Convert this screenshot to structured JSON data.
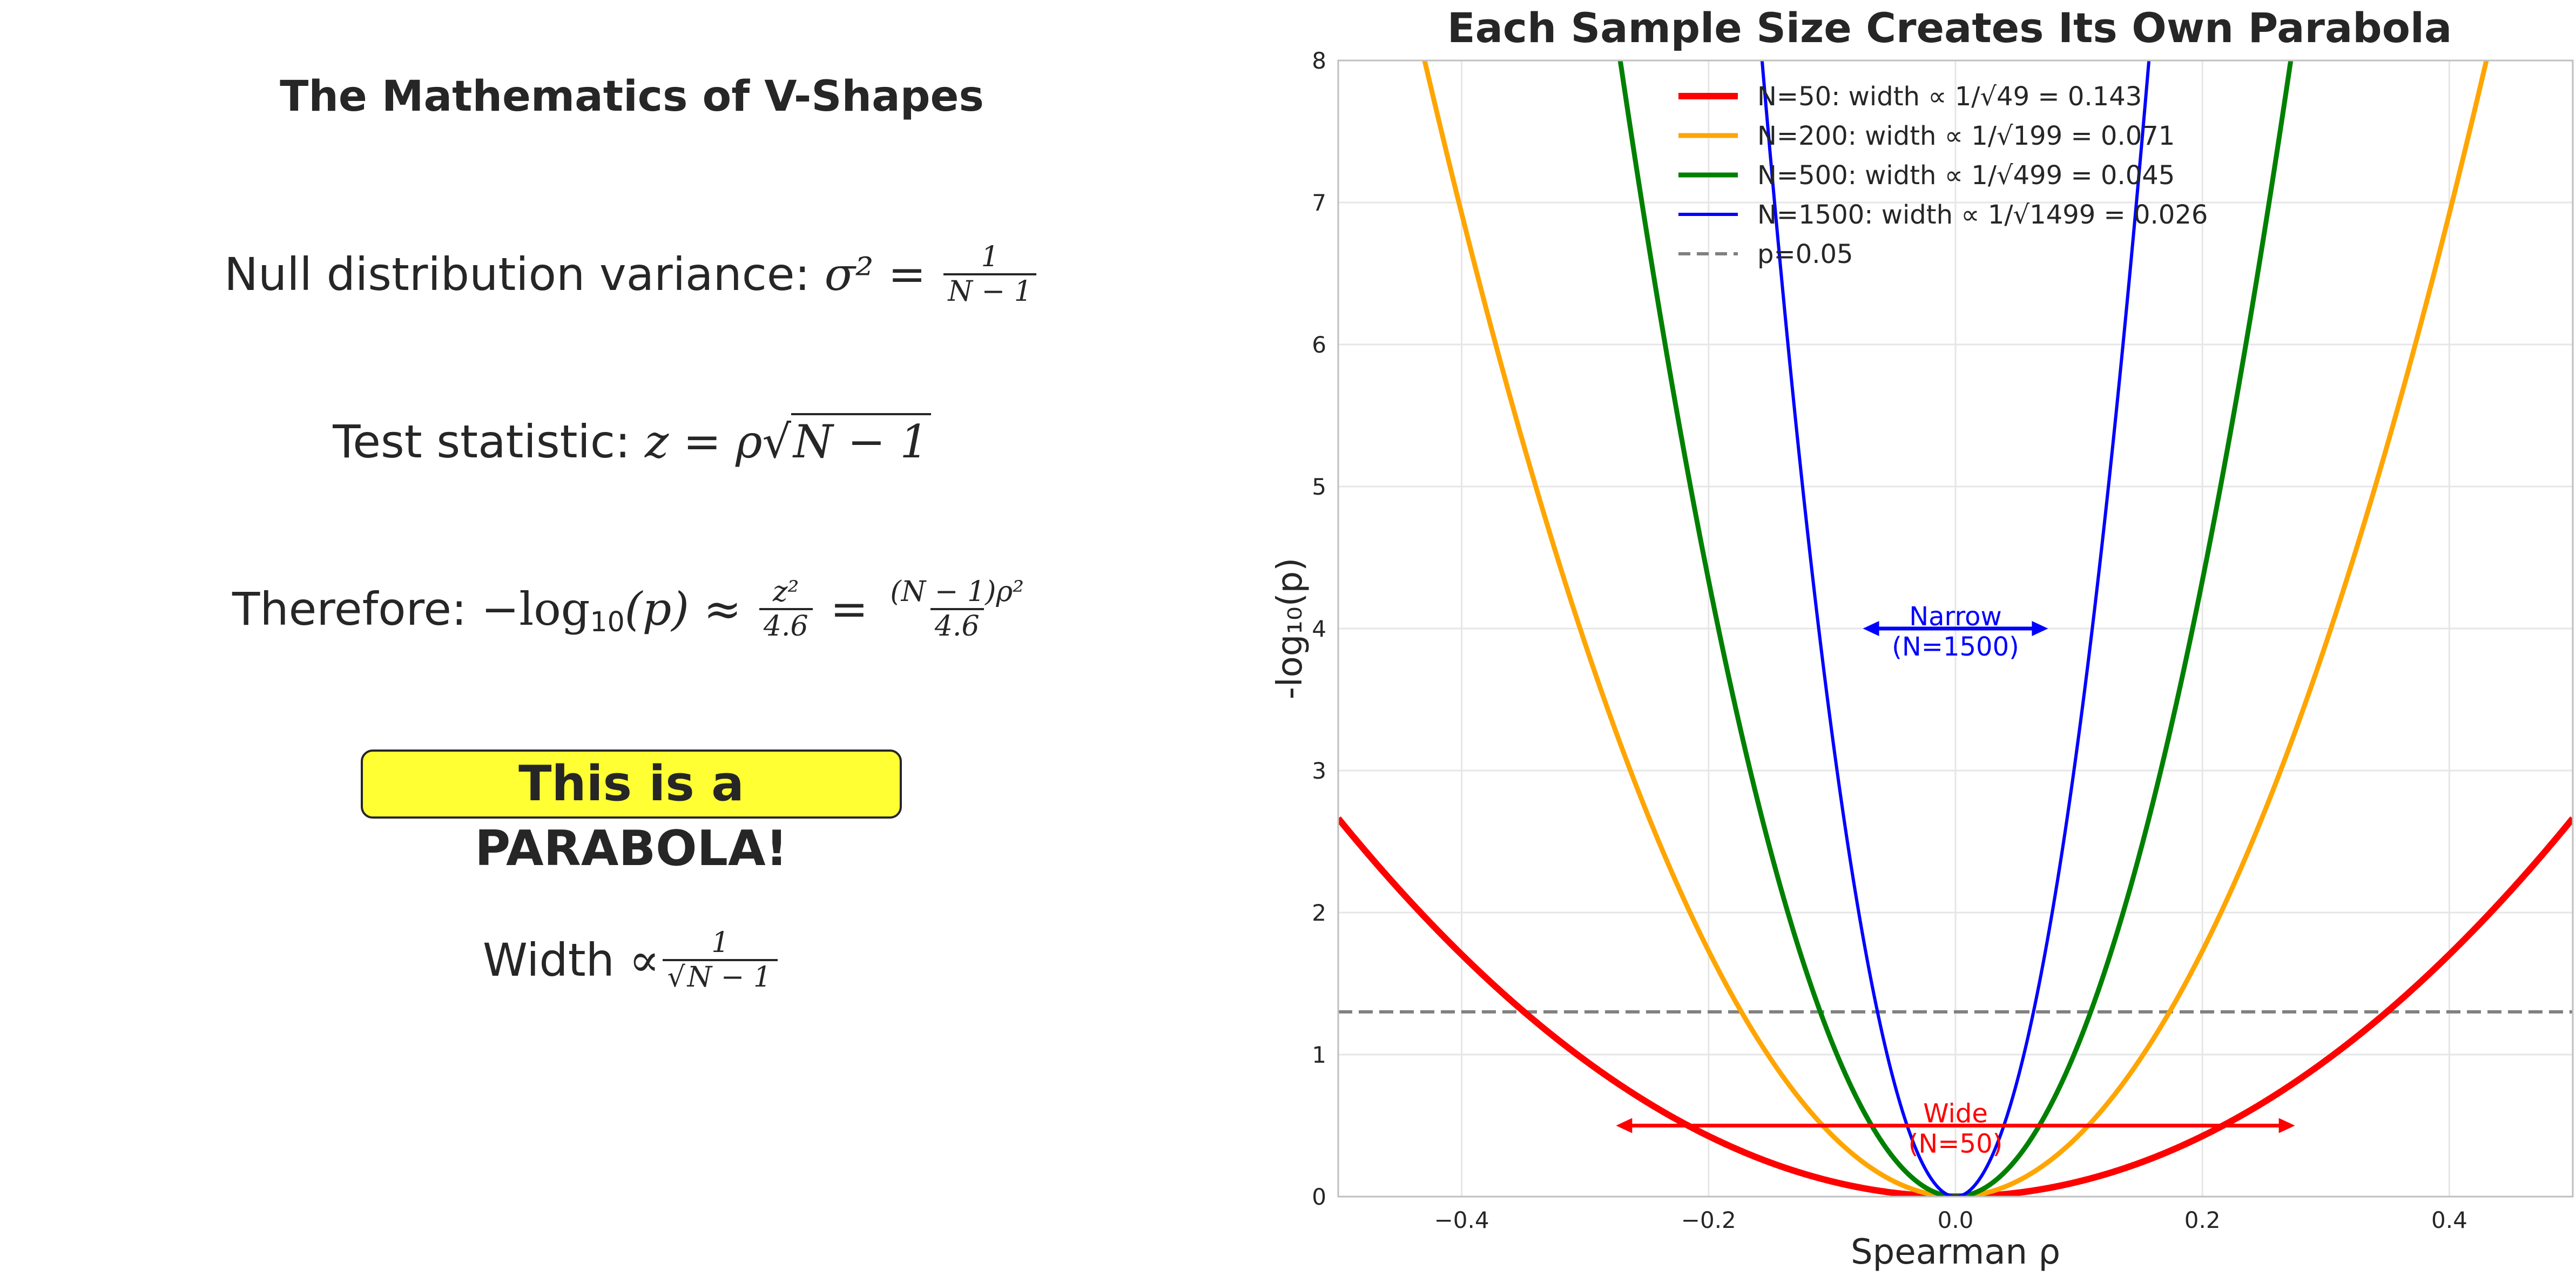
{
  "left_panel": {
    "title": "The Mathematics of V-Shapes",
    "eq1_label": "Null distribution variance: ",
    "eq1_lhs": "σ² = ",
    "eq1_num": "1",
    "eq1_den": "N − 1",
    "eq2_label": "Test statistic: ",
    "eq2_lhs": "z = ρ",
    "eq2_sqrt": "N − 1",
    "eq3_label": "Therefore: ",
    "eq3_lhs": "−log",
    "eq3_sub": "10",
    "eq3_arg": "(p) ≈ ",
    "eq3_num1": "z²",
    "eq3_den1": "4.6",
    "eq3_eq": " = ",
    "eq3_num2": "(N − 1)ρ²",
    "eq3_den2": "4.6",
    "highlight": "This is a PARABOLA!",
    "width_label": "Width ",
    "width_prop": "∝",
    "width_num": "1",
    "width_den": "N − 1"
  },
  "chart_data": {
    "type": "line",
    "title": "Each Sample Size Creates Its Own Parabola",
    "xlabel": "Spearman ρ",
    "ylabel": "-log₁₀(p)",
    "xlim": [
      -0.5,
      0.5
    ],
    "ylim": [
      0,
      8
    ],
    "xticks": [
      -0.4,
      -0.2,
      0.0,
      0.2,
      0.4
    ],
    "xtick_labels": [
      "−0.4",
      "−0.2",
      "0.0",
      "0.2",
      "0.4"
    ],
    "yticks": [
      0,
      1,
      2,
      3,
      4,
      5,
      6,
      7,
      8
    ],
    "ytick_labels": [
      "0",
      "1",
      "2",
      "3",
      "4",
      "5",
      "6",
      "7",
      "8"
    ],
    "grid": true,
    "legend_position": "upper-center",
    "series": [
      {
        "name": "N=50: width ∝ 1/√49 = 0.143",
        "N": 50,
        "formula": "(N-1)*rho^2/4.6",
        "color": "#ff0000",
        "weight": "thick"
      },
      {
        "name": "N=200: width ∝ 1/√199 = 0.071",
        "N": 200,
        "formula": "(N-1)*rho^2/4.6",
        "color": "#ffa500",
        "weight": "medium"
      },
      {
        "name": "N=500: width ∝ 1/√499 = 0.045",
        "N": 500,
        "formula": "(N-1)*rho^2/4.6",
        "color": "#008000",
        "weight": "medium"
      },
      {
        "name": "N=1500: width ∝ 1/√1499 = 0.026",
        "N": 1500,
        "formula": "(N-1)*rho^2/4.6",
        "color": "#0000ff",
        "weight": "thin"
      }
    ],
    "reference_line": {
      "name": "p=0.05",
      "y": 1.301,
      "color": "#808080",
      "style": "dashed"
    },
    "annotations": [
      {
        "text_line1": "Narrow",
        "text_line2": "(N=1500)",
        "x_from": -0.075,
        "x_to": 0.075,
        "y": 4.0,
        "color": "#0000ff"
      },
      {
        "text_line1": "Wide",
        "text_line2": "(N=50)",
        "x_from": -0.275,
        "x_to": 0.275,
        "y": 0.5,
        "color": "#ff0000"
      }
    ]
  }
}
